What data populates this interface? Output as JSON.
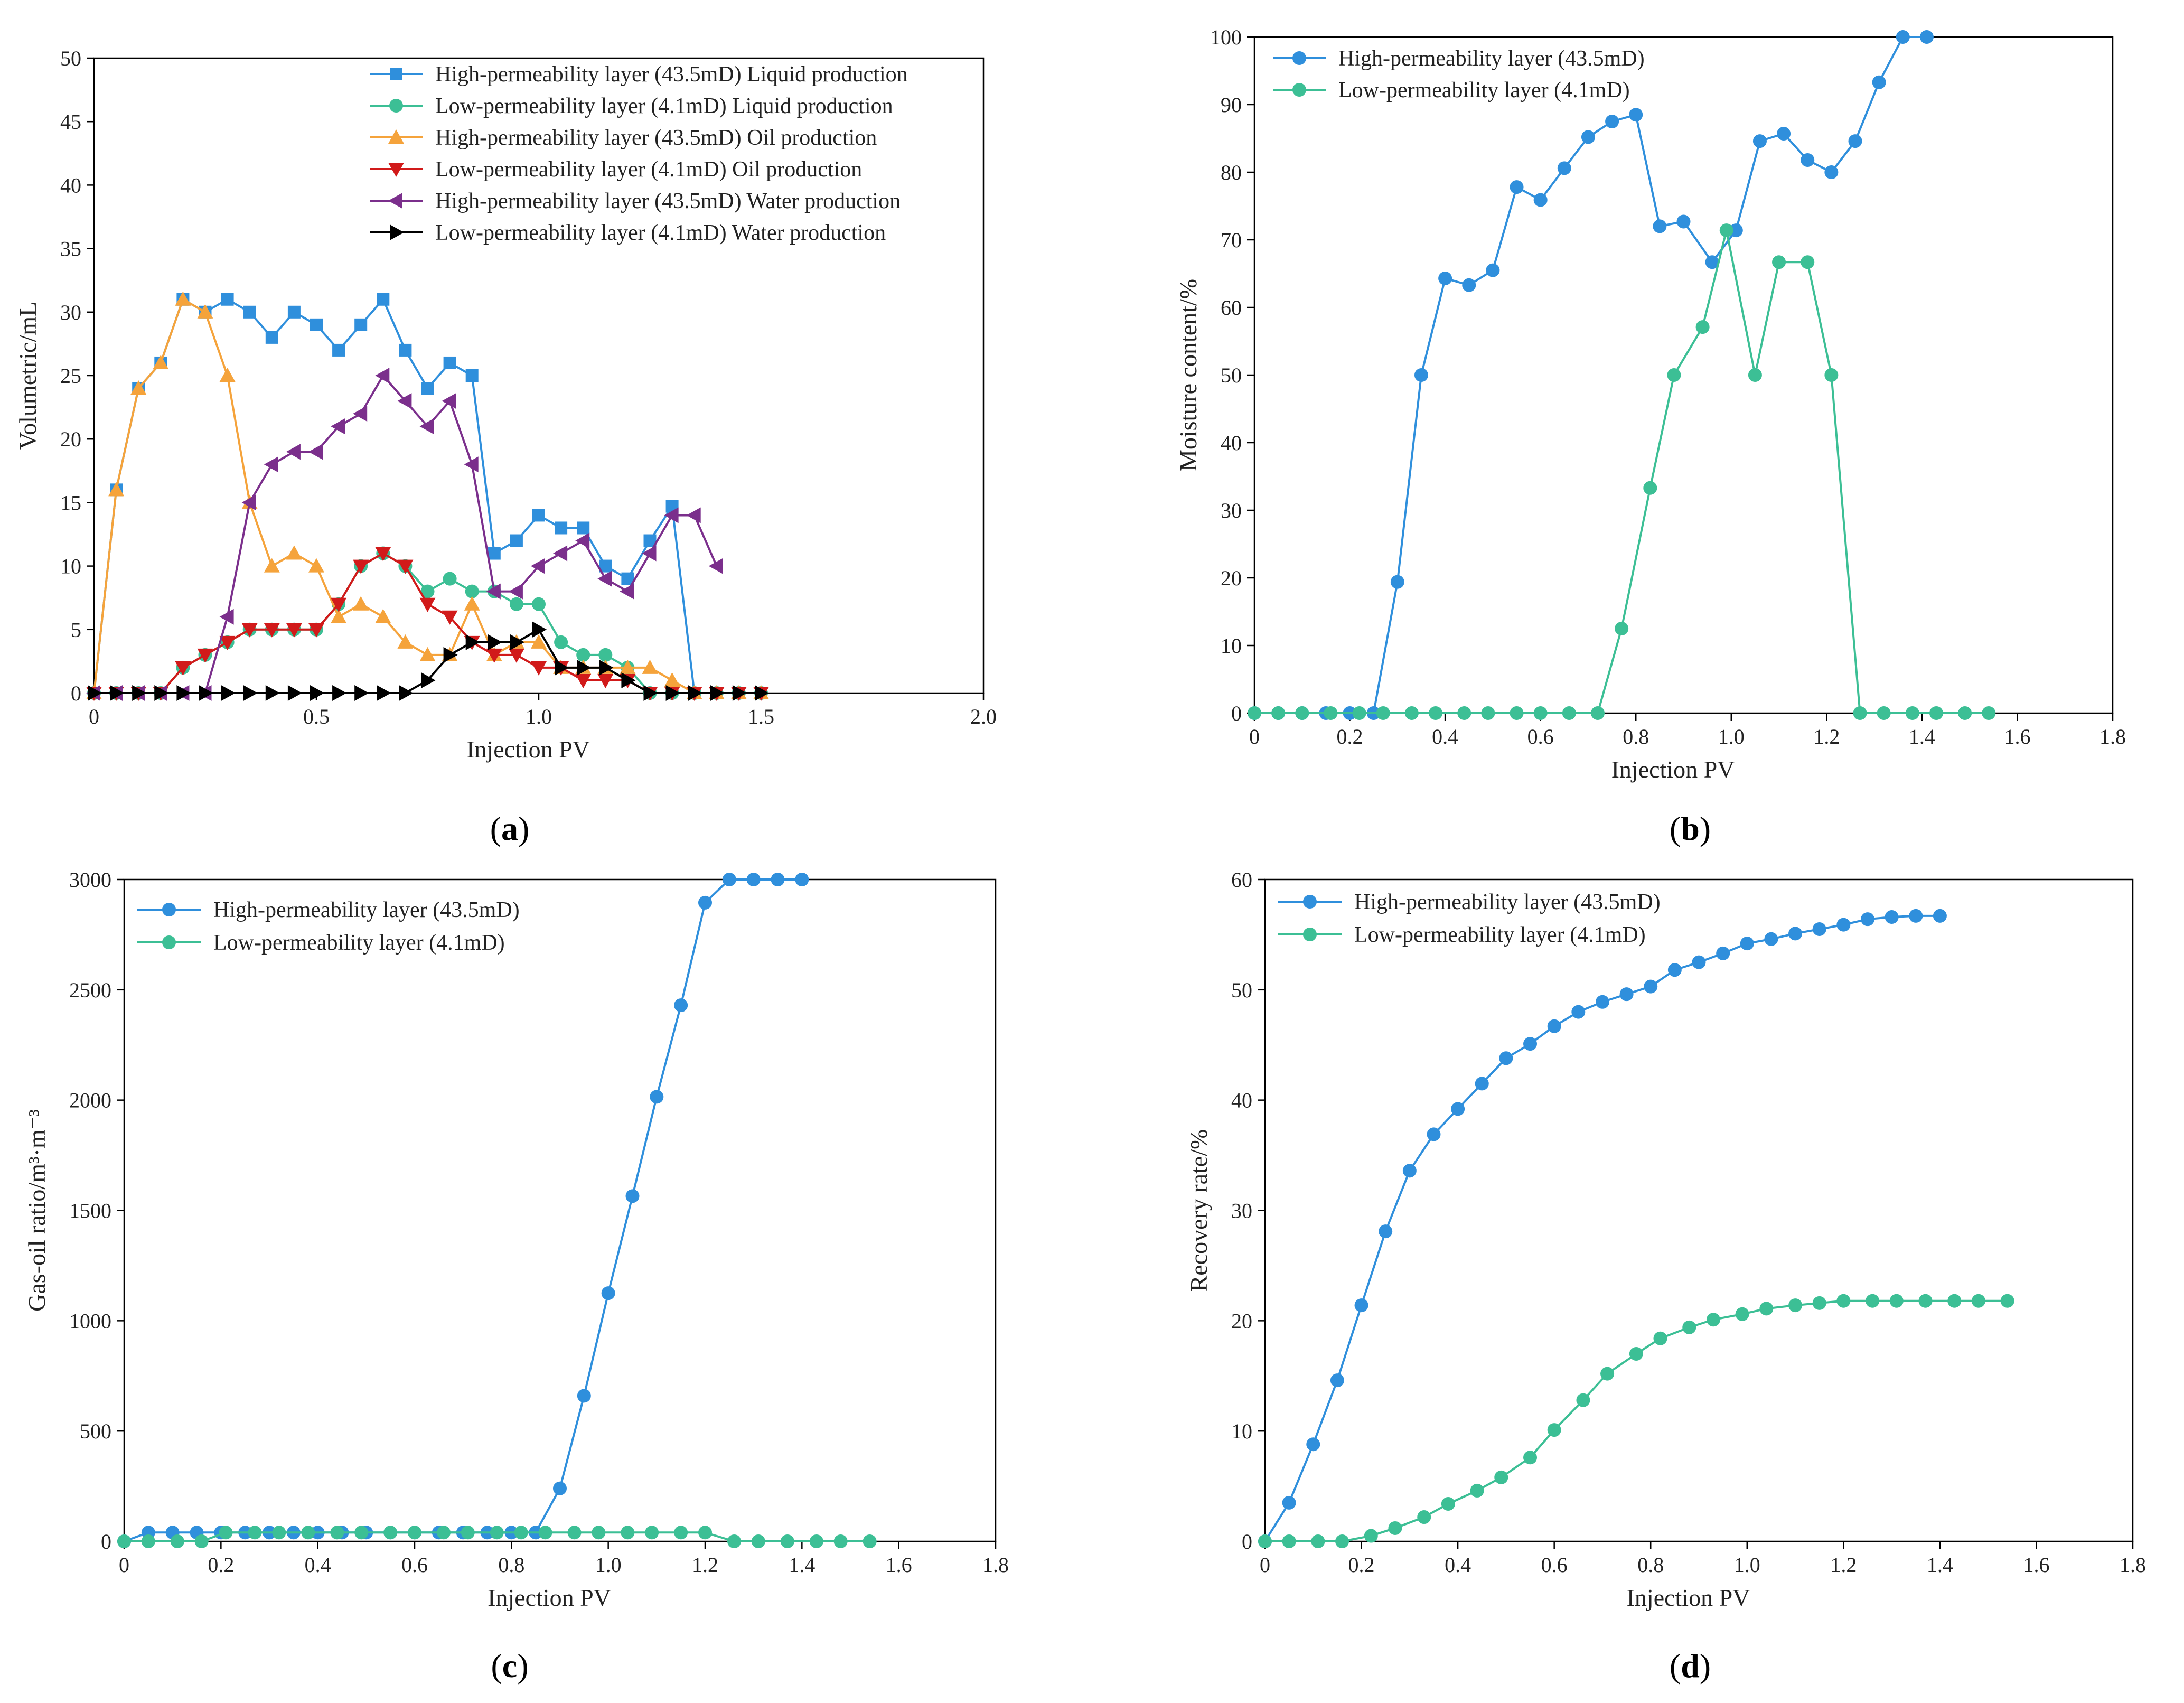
{
  "chart_data": [
    {
      "id": "a",
      "type": "line",
      "caption": "a",
      "xlabel": "Injection PV",
      "ylabel": "Volumetric/mL",
      "xlim": [
        0,
        2.0
      ],
      "ylim": [
        0,
        50
      ],
      "xticks": [
        "0",
        "0.5",
        "1.0",
        "1.5",
        "2.0"
      ],
      "xtick_values": [
        0,
        0.5,
        1.0,
        1.5,
        2.0
      ],
      "yticks": [
        "0",
        "5",
        "10",
        "15",
        "20",
        "25",
        "30",
        "35",
        "40",
        "45",
        "50"
      ],
      "ytick_values": [
        0,
        5,
        10,
        15,
        20,
        25,
        30,
        35,
        40,
        45,
        50
      ],
      "legend_position": "top-right",
      "series": [
        {
          "name": "High-permeability layer (43.5mD) Liquid production",
          "color": "#2f8fdc",
          "marker": "square",
          "x": [
            0,
            0.05,
            0.1,
            0.15,
            0.2,
            0.25,
            0.3,
            0.35,
            0.4,
            0.45,
            0.5,
            0.55,
            0.6,
            0.65,
            0.7,
            0.75,
            0.8,
            0.85,
            0.9,
            0.95,
            1.0,
            1.05,
            1.1,
            1.15,
            1.2,
            1.25,
            1.3,
            1.35,
            1.4,
            1.45,
            1.5
          ],
          "y": [
            0,
            16,
            24,
            26,
            31,
            30,
            31,
            30,
            28,
            30,
            29,
            27,
            29,
            31,
            27,
            24,
            26,
            25,
            11,
            12,
            14,
            13,
            13,
            10,
            9,
            12,
            14.7,
            0,
            0,
            0,
            0
          ]
        },
        {
          "name": "Low-permeability layer (4.1mD) Liquid production",
          "color": "#3cbf95",
          "marker": "circle",
          "x": [
            0,
            0.05,
            0.1,
            0.15,
            0.2,
            0.25,
            0.3,
            0.35,
            0.4,
            0.45,
            0.5,
            0.55,
            0.6,
            0.65,
            0.7,
            0.75,
            0.8,
            0.85,
            0.9,
            0.95,
            1.0,
            1.05,
            1.1,
            1.15,
            1.2,
            1.25,
            1.3,
            1.35,
            1.4,
            1.45,
            1.5
          ],
          "y": [
            0,
            0,
            0,
            0,
            2,
            3,
            4,
            5,
            5,
            5,
            5,
            7,
            10,
            11,
            10,
            8,
            9,
            8,
            8,
            7,
            7,
            4,
            3,
            3,
            2,
            0,
            0,
            0,
            0,
            0,
            0
          ]
        },
        {
          "name": "High-permeability layer (43.5mD) Oil production",
          "color": "#f5a33b",
          "marker": "triangle-up",
          "x": [
            0,
            0.05,
            0.1,
            0.15,
            0.2,
            0.25,
            0.3,
            0.35,
            0.4,
            0.45,
            0.5,
            0.55,
            0.6,
            0.65,
            0.7,
            0.75,
            0.8,
            0.85,
            0.9,
            0.95,
            1.0,
            1.05,
            1.1,
            1.15,
            1.2,
            1.25,
            1.3,
            1.35,
            1.4,
            1.45,
            1.5
          ],
          "y": [
            0,
            16,
            24,
            26,
            31,
            30,
            25,
            15,
            10,
            11,
            10,
            6,
            7,
            6,
            4,
            3,
            3,
            7,
            3,
            4,
            4,
            2,
            2,
            2,
            2,
            2,
            1,
            0,
            0,
            0,
            0
          ]
        },
        {
          "name": "Low-permeability layer (4.1mD) Oil production",
          "color": "#d11a1a",
          "marker": "triangle-down",
          "x": [
            0,
            0.05,
            0.1,
            0.15,
            0.2,
            0.25,
            0.3,
            0.35,
            0.4,
            0.45,
            0.5,
            0.55,
            0.6,
            0.65,
            0.7,
            0.75,
            0.8,
            0.85,
            0.9,
            0.95,
            1.0,
            1.05,
            1.1,
            1.15,
            1.2,
            1.25,
            1.3,
            1.35,
            1.4,
            1.45,
            1.5
          ],
          "y": [
            0,
            0,
            0,
            0,
            2,
            3,
            4,
            5,
            5,
            5,
            5,
            7,
            10,
            11,
            10,
            7,
            6,
            4,
            3,
            3,
            2,
            2,
            1,
            1,
            1,
            0,
            0,
            0,
            0,
            0,
            0
          ]
        },
        {
          "name": "High-permeability layer (43.5mD) Water production",
          "color": "#7b2f8c",
          "marker": "triangle-left",
          "x": [
            0,
            0.05,
            0.1,
            0.15,
            0.2,
            0.25,
            0.3,
            0.35,
            0.4,
            0.45,
            0.5,
            0.55,
            0.6,
            0.65,
            0.7,
            0.75,
            0.8,
            0.85,
            0.9,
            0.95,
            1.0,
            1.05,
            1.1,
            1.15,
            1.2,
            1.25,
            1.3,
            1.35,
            1.4
          ],
          "y": [
            0,
            0,
            0,
            0,
            0,
            0,
            6,
            15,
            18,
            19,
            19,
            21,
            22,
            25,
            23,
            21,
            23,
            18,
            8,
            8,
            10,
            11,
            12,
            9,
            8,
            11,
            14,
            14,
            10
          ]
        },
        {
          "name": "Low-permeability layer (4.1mD) Water production",
          "color": "#000000",
          "marker": "triangle-right",
          "x": [
            0,
            0.05,
            0.1,
            0.15,
            0.2,
            0.25,
            0.3,
            0.35,
            0.4,
            0.45,
            0.5,
            0.55,
            0.6,
            0.65,
            0.7,
            0.75,
            0.8,
            0.85,
            0.9,
            0.95,
            1.0,
            1.05,
            1.1,
            1.15,
            1.2,
            1.25,
            1.3,
            1.35,
            1.4,
            1.45,
            1.5
          ],
          "y": [
            0,
            0,
            0,
            0,
            0,
            0,
            0,
            0,
            0,
            0,
            0,
            0,
            0,
            0,
            0,
            1,
            3,
            4,
            4,
            4,
            5,
            2,
            2,
            2,
            1,
            0,
            0,
            0,
            0,
            0,
            0
          ]
        }
      ]
    },
    {
      "id": "b",
      "type": "line",
      "caption": "b",
      "xlabel": "Injection PV",
      "ylabel": "Moisture content/%",
      "xlim": [
        0,
        1.8
      ],
      "ylim": [
        0,
        100
      ],
      "xticks": [
        "0",
        "0.2",
        "0.4",
        "0.6",
        "0.8",
        "1.0",
        "1.2",
        "1.4",
        "1.6",
        "1.8"
      ],
      "xtick_values": [
        0,
        0.2,
        0.4,
        0.6,
        0.8,
        1.0,
        1.2,
        1.4,
        1.6,
        1.8
      ],
      "yticks": [
        "0",
        "10",
        "20",
        "30",
        "40",
        "50",
        "60",
        "70",
        "80",
        "90",
        "100"
      ],
      "ytick_values": [
        0,
        10,
        20,
        30,
        40,
        50,
        60,
        70,
        80,
        90,
        100
      ],
      "legend_position": "top-left",
      "series": [
        {
          "name": "High-permeability layer (43.5mD)",
          "color": "#2f8fdc",
          "marker": "circle",
          "x": [
            0,
            0.05,
            0.1,
            0.15,
            0.2,
            0.25,
            0.3,
            0.35,
            0.4,
            0.45,
            0.5,
            0.55,
            0.6,
            0.65,
            0.7,
            0.75,
            0.8,
            0.85,
            0.9,
            0.96,
            1.01,
            1.06,
            1.11,
            1.16,
            1.21,
            1.26,
            1.31,
            1.36,
            1.41
          ],
          "y": [
            0,
            0,
            0,
            0,
            0,
            0,
            19.4,
            50,
            64.3,
            63.3,
            65.5,
            77.8,
            75.9,
            80.6,
            85.2,
            87.5,
            88.5,
            72,
            72.7,
            66.7,
            71.4,
            84.6,
            85.7,
            81.8,
            80,
            84.6,
            93.3,
            100,
            100
          ]
        },
        {
          "name": "Low-permeability layer (4.1mD)",
          "color": "#3cbf95",
          "marker": "circle",
          "x": [
            0,
            0.05,
            0.1,
            0.16,
            0.22,
            0.27,
            0.33,
            0.38,
            0.44,
            0.49,
            0.55,
            0.6,
            0.66,
            0.72,
            0.77,
            0.83,
            0.88,
            0.94,
            0.99,
            1.05,
            1.1,
            1.16,
            1.21,
            1.27,
            1.32,
            1.38,
            1.43,
            1.49,
            1.54
          ],
          "y": [
            0,
            0,
            0,
            0,
            0,
            0,
            0,
            0,
            0,
            0,
            0,
            0,
            0,
            0,
            12.5,
            33.3,
            50,
            57.1,
            71.4,
            50,
            66.7,
            66.7,
            50,
            0,
            0,
            0,
            0,
            0,
            0
          ]
        }
      ]
    },
    {
      "id": "c",
      "type": "line",
      "caption": "c",
      "xlabel": "Injection PV",
      "ylabel": "Gas-oil ratio/m³·m⁻³",
      "xlim": [
        0,
        1.8
      ],
      "ylim": [
        0,
        3000
      ],
      "xticks": [
        "0",
        "0.2",
        "0.4",
        "0.6",
        "0.8",
        "1.0",
        "1.2",
        "1.4",
        "1.6",
        "1.8"
      ],
      "xtick_values": [
        0,
        0.2,
        0.4,
        0.6,
        0.8,
        1.0,
        1.2,
        1.4,
        1.6,
        1.8
      ],
      "yticks": [
        "0",
        "500",
        "1000",
        "1500",
        "2000",
        "2500",
        "3000"
      ],
      "ytick_values": [
        0,
        500,
        1000,
        1500,
        2000,
        2500,
        3000
      ],
      "legend_position": "top-left",
      "series": [
        {
          "name": "High-permeability layer (43.5mD)",
          "color": "#2f8fdc",
          "marker": "circle",
          "x": [
            0,
            0.05,
            0.1,
            0.15,
            0.2,
            0.25,
            0.3,
            0.35,
            0.4,
            0.45,
            0.5,
            0.55,
            0.6,
            0.65,
            0.7,
            0.75,
            0.8,
            0.85,
            0.9,
            0.95,
            1.0,
            1.05,
            1.1,
            1.15,
            1.2,
            1.25,
            1.3,
            1.35,
            1.4
          ],
          "y": [
            0,
            40,
            40,
            40,
            40,
            40,
            40,
            40,
            40,
            40,
            40,
            40,
            40,
            40,
            40,
            40,
            40,
            40,
            240,
            660,
            1125,
            1565,
            2015,
            2430,
            2895,
            3000,
            3000,
            3000,
            3000
          ]
        },
        {
          "name": "Low-permeability layer (4.1mD)",
          "color": "#3cbf95",
          "marker": "circle",
          "x": [
            0,
            0.05,
            0.11,
            0.16,
            0.21,
            0.27,
            0.32,
            0.38,
            0.44,
            0.49,
            0.55,
            0.6,
            0.66,
            0.71,
            0.77,
            0.82,
            0.87,
            0.93,
            0.98,
            1.04,
            1.09,
            1.15,
            1.2,
            1.26,
            1.31,
            1.37,
            1.43,
            1.48,
            1.54
          ],
          "y": [
            0,
            0,
            0,
            0,
            40,
            40,
            40,
            40,
            40,
            40,
            40,
            40,
            40,
            40,
            40,
            40,
            40,
            40,
            40,
            40,
            40,
            40,
            40,
            0,
            0,
            0,
            0,
            0,
            0
          ]
        }
      ]
    },
    {
      "id": "d",
      "type": "line",
      "caption": "d",
      "xlabel": "Injection PV",
      "ylabel": "Recovery rate/%",
      "xlim": [
        0,
        1.8
      ],
      "ylim": [
        0,
        60
      ],
      "xticks": [
        "0",
        "0.2",
        "0.4",
        "0.6",
        "0.8",
        "1.0",
        "1.2",
        "1.4",
        "1.6",
        "1.8"
      ],
      "xtick_values": [
        0,
        0.2,
        0.4,
        0.6,
        0.8,
        1.0,
        1.2,
        1.4,
        1.6,
        1.8
      ],
      "yticks": [
        "0",
        "10",
        "20",
        "30",
        "40",
        "50",
        "60"
      ],
      "ytick_values": [
        0,
        10,
        20,
        30,
        40,
        50,
        60
      ],
      "legend_position": "top-left",
      "series": [
        {
          "name": "High-permeability layer (43.5mD)",
          "color": "#2f8fdc",
          "marker": "circle",
          "x": [
            0,
            0.05,
            0.1,
            0.15,
            0.2,
            0.25,
            0.3,
            0.35,
            0.4,
            0.45,
            0.5,
            0.55,
            0.6,
            0.65,
            0.7,
            0.75,
            0.8,
            0.85,
            0.9,
            0.95,
            1.0,
            1.05,
            1.1,
            1.15,
            1.2,
            1.25,
            1.3,
            1.35,
            1.4
          ],
          "y": [
            0,
            3.5,
            8.8,
            14.6,
            21.4,
            28.1,
            33.6,
            36.9,
            39.2,
            41.5,
            43.8,
            45.1,
            46.7,
            48,
            48.9,
            49.6,
            50.3,
            51.8,
            52.5,
            53.3,
            54.2,
            54.6,
            55.1,
            55.5,
            55.9,
            56.4,
            56.6,
            56.7,
            56.7
          ]
        },
        {
          "name": "Low-permeability layer (4.1mD)",
          "color": "#3cbf95",
          "marker": "circle",
          "x": [
            0,
            0.05,
            0.11,
            0.16,
            0.22,
            0.27,
            0.33,
            0.38,
            0.44,
            0.49,
            0.55,
            0.6,
            0.66,
            0.71,
            0.77,
            0.82,
            0.88,
            0.93,
            0.99,
            1.04,
            1.1,
            1.15,
            1.2,
            1.26,
            1.31,
            1.37,
            1.43,
            1.48,
            1.54
          ],
          "y": [
            0,
            0,
            0,
            0,
            0.5,
            1.2,
            2.2,
            3.4,
            4.6,
            5.8,
            7.6,
            10.1,
            12.8,
            15.2,
            17,
            18.4,
            19.4,
            20.1,
            20.6,
            21.1,
            21.4,
            21.6,
            21.8,
            21.8,
            21.8,
            21.8,
            21.8,
            21.8,
            21.8
          ]
        }
      ]
    }
  ]
}
